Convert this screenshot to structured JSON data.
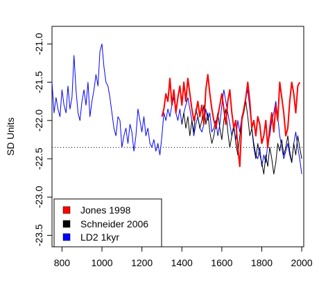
{
  "chart_data": {
    "type": "line",
    "title": "",
    "xlabel": "",
    "ylabel": "SD Units",
    "xlim": [
      750,
      2010
    ],
    "ylim": [
      -23.65,
      -20.77
    ],
    "x_ticks": [
      800,
      1000,
      1200,
      1400,
      1600,
      1800,
      2000
    ],
    "y_ticks": [
      -21.0,
      -21.5,
      -22.0,
      -22.5,
      -23.0,
      -23.5
    ],
    "y_tick_labels": [
      "-21.0",
      "-21.5",
      "-22.0",
      "-22.5",
      "-23.0",
      "-23.5"
    ],
    "grid": false,
    "legend_position": "bottom-left",
    "reference_line": {
      "y": -22.35,
      "style": "dotted"
    },
    "series": [
      {
        "name": "Jones 1998",
        "color": "#ff0000",
        "x": [
          1300,
          1310,
          1320,
          1330,
          1340,
          1350,
          1360,
          1370,
          1380,
          1390,
          1400,
          1410,
          1420,
          1430,
          1440,
          1450,
          1460,
          1470,
          1480,
          1490,
          1500,
          1510,
          1520,
          1530,
          1540,
          1550,
          1560,
          1570,
          1580,
          1590,
          1600,
          1610,
          1620,
          1630,
          1640,
          1650,
          1660,
          1670,
          1680,
          1690,
          1700,
          1710,
          1720,
          1730,
          1740,
          1750,
          1760,
          1770,
          1780,
          1790,
          1800,
          1810,
          1820,
          1830,
          1840,
          1850,
          1860,
          1870,
          1880,
          1890,
          1900,
          1910,
          1920,
          1930,
          1940,
          1950,
          1960,
          1970,
          1980,
          1990
        ],
        "y": [
          -21.95,
          -21.85,
          -21.65,
          -21.75,
          -21.45,
          -21.8,
          -21.6,
          -21.9,
          -21.7,
          -21.55,
          -21.8,
          -21.5,
          -21.75,
          -21.45,
          -21.65,
          -21.85,
          -22.0,
          -21.9,
          -21.75,
          -21.95,
          -21.8,
          -22.05,
          -21.6,
          -21.4,
          -21.65,
          -21.85,
          -22.0,
          -22.1,
          -21.95,
          -21.8,
          -21.65,
          -21.85,
          -22.05,
          -21.75,
          -21.6,
          -21.9,
          -22.1,
          -22.0,
          -22.35,
          -22.6,
          -22.0,
          -21.85,
          -21.7,
          -21.5,
          -21.75,
          -22.1,
          -22.0,
          -22.2,
          -21.95,
          -22.05,
          -22.3,
          -22.2,
          -22.0,
          -22.35,
          -22.1,
          -21.9,
          -22.15,
          -21.8,
          -22.0,
          -21.5,
          -21.7,
          -21.9,
          -22.2,
          -22.1,
          -21.75,
          -21.5,
          -21.65,
          -21.9,
          -21.55,
          -21.5
        ]
      },
      {
        "name": "Schneider 2006",
        "color": "#000000",
        "x": [
          1400,
          1410,
          1420,
          1430,
          1440,
          1450,
          1460,
          1470,
          1480,
          1490,
          1500,
          1510,
          1520,
          1530,
          1540,
          1550,
          1560,
          1570,
          1580,
          1590,
          1600,
          1610,
          1620,
          1630,
          1640,
          1650,
          1660,
          1670,
          1680,
          1690,
          1700,
          1710,
          1720,
          1730,
          1740,
          1750,
          1760,
          1770,
          1780,
          1790,
          1800,
          1810,
          1820,
          1830,
          1840,
          1850,
          1860,
          1870,
          1880,
          1890,
          1900,
          1910,
          1920,
          1930,
          1940,
          1950,
          1960,
          1970,
          1980,
          1990,
          2000
        ],
        "y": [
          -22.05,
          -21.9,
          -22.1,
          -21.95,
          -22.2,
          -22.0,
          -22.15,
          -21.85,
          -21.95,
          -22.1,
          -22.0,
          -21.8,
          -22.05,
          -21.9,
          -22.15,
          -22.3,
          -22.2,
          -22.05,
          -21.9,
          -22.1,
          -22.25,
          -22.0,
          -21.85,
          -22.15,
          -22.35,
          -22.2,
          -22.05,
          -22.3,
          -22.45,
          -22.2,
          -22.0,
          -21.9,
          -21.75,
          -21.95,
          -22.2,
          -22.1,
          -22.35,
          -22.5,
          -22.3,
          -22.45,
          -22.55,
          -22.7,
          -22.45,
          -22.6,
          -22.35,
          -22.5,
          -22.7,
          -22.55,
          -22.3,
          -22.4,
          -22.25,
          -22.45,
          -22.35,
          -22.2,
          -22.4,
          -22.55,
          -22.3,
          -22.45,
          -22.2,
          -22.35,
          -22.5
        ]
      },
      {
        "name": "LD2 1kyr",
        "color": "#0000ff",
        "x": [
          750,
          760,
          770,
          780,
          790,
          800,
          810,
          820,
          830,
          840,
          850,
          860,
          870,
          880,
          890,
          900,
          910,
          920,
          930,
          940,
          950,
          960,
          970,
          980,
          990,
          1000,
          1010,
          1020,
          1030,
          1040,
          1050,
          1060,
          1070,
          1080,
          1090,
          1100,
          1110,
          1120,
          1130,
          1140,
          1150,
          1160,
          1170,
          1180,
          1190,
          1200,
          1210,
          1220,
          1230,
          1240,
          1250,
          1260,
          1270,
          1280,
          1290,
          1300,
          1310,
          1320,
          1330,
          1340,
          1350,
          1360,
          1370,
          1380,
          1390,
          1400,
          1410,
          1420,
          1430,
          1440,
          1450,
          1460,
          1470,
          1480,
          1490,
          1500,
          1510,
          1520,
          1530,
          1540,
          1550,
          1560,
          1570,
          1580,
          1590,
          1600,
          1610,
          1620,
          1630,
          1640,
          1650,
          1660,
          1670,
          1680,
          1690,
          1700,
          1710,
          1720,
          1730,
          1740,
          1750,
          1760,
          1770,
          1780,
          1790,
          1800,
          1810,
          1820,
          1830,
          1840,
          1850,
          1860,
          1870,
          1880,
          1890,
          1900,
          1910,
          1920,
          1930,
          1940,
          1950,
          1960,
          1970,
          1980,
          1990,
          2000
        ],
        "y": [
          -21.5,
          -21.9,
          -21.7,
          -21.85,
          -21.95,
          -21.6,
          -21.8,
          -21.9,
          -21.55,
          -21.85,
          -21.7,
          -21.15,
          -21.6,
          -21.9,
          -22.0,
          -21.75,
          -21.6,
          -21.8,
          -21.5,
          -21.95,
          -21.75,
          -21.6,
          -21.4,
          -21.55,
          -21.1,
          -21.0,
          -21.3,
          -21.5,
          -21.55,
          -21.7,
          -21.9,
          -22.1,
          -22.2,
          -21.95,
          -22.0,
          -22.35,
          -22.2,
          -22.1,
          -22.3,
          -22.05,
          -22.15,
          -22.4,
          -22.2,
          -21.85,
          -22.0,
          -22.15,
          -21.95,
          -22.2,
          -22.1,
          -22.3,
          -22.35,
          -22.25,
          -22.4,
          -22.3,
          -22.45,
          -22.2,
          -21.9,
          -22.0,
          -21.85,
          -21.95,
          -21.8,
          -21.7,
          -21.9,
          -22.0,
          -21.85,
          -22.05,
          -21.9,
          -21.8,
          -21.7,
          -21.85,
          -22.0,
          -22.2,
          -22.05,
          -21.95,
          -22.1,
          -22.15,
          -22.05,
          -21.85,
          -22.0,
          -21.9,
          -22.15,
          -22.1,
          -22.0,
          -22.2,
          -22.05,
          -21.8,
          -21.6,
          -21.75,
          -21.9,
          -22.05,
          -22.2,
          -22.1,
          -22.25,
          -22.0,
          -22.15,
          -21.95,
          -21.85,
          -21.7,
          -21.6,
          -21.85,
          -22.1,
          -22.3,
          -22.45,
          -22.5,
          -22.35,
          -22.6,
          -22.45,
          -22.55,
          -22.3,
          -22.2,
          -22.0,
          -21.9,
          -21.75,
          -21.95,
          -22.2,
          -22.35,
          -22.5,
          -22.4,
          -22.3,
          -22.45,
          -22.55,
          -22.3,
          -22.15,
          -22.35,
          -22.5,
          -22.7
        ]
      }
    ]
  }
}
